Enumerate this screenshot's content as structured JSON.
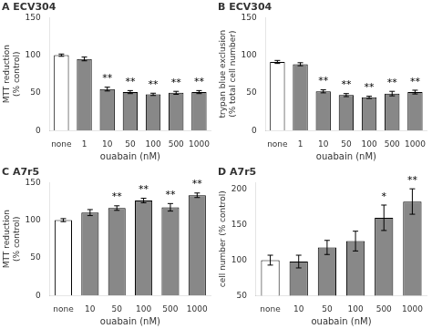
{
  "chart_data": [
    {
      "type": "bar",
      "title": "A ECV304",
      "xlabel": "ouabain (nM)",
      "ylabel": "MTT reduction\n(% control)",
      "categories": [
        "none",
        "1",
        "10",
        "50",
        "100",
        "500",
        "1000"
      ],
      "values": [
        100,
        95,
        55,
        51,
        48,
        50,
        51
      ],
      "errors": [
        1.5,
        2.5,
        2.5,
        2,
        1.5,
        2,
        2
      ],
      "colors": [
        "white",
        "#888888",
        "#888888",
        "#888888",
        "#888888",
        "#888888",
        "#888888"
      ],
      "ylim": [
        0,
        150
      ],
      "yticks": [
        0,
        50,
        100,
        150
      ],
      "grid": false,
      "annotations": [
        {
          "category": "10",
          "text": "**"
        },
        {
          "category": "50",
          "text": "**"
        },
        {
          "category": "100",
          "text": "**"
        },
        {
          "category": "500",
          "text": "**"
        },
        {
          "category": "1000",
          "text": "**"
        }
      ]
    },
    {
      "type": "bar",
      "title": "B ECV304",
      "xlabel": "ouabain (nM)",
      "ylabel": "trypan blue exclusion\n(% total cell number)",
      "categories": [
        "none",
        "1",
        "10",
        "50",
        "100",
        "500",
        "1000"
      ],
      "values": [
        91,
        88,
        52,
        47,
        44,
        49,
        51
      ],
      "errors": [
        2,
        2,
        2,
        2,
        1.5,
        3,
        2.5
      ],
      "colors": [
        "white",
        "#888888",
        "#888888",
        "#888888",
        "#888888",
        "#888888",
        "#888888"
      ],
      "ylim": [
        0,
        150
      ],
      "yticks": [
        0,
        50,
        100,
        150
      ],
      "grid": false,
      "annotations": [
        {
          "category": "10",
          "text": "**"
        },
        {
          "category": "50",
          "text": "**"
        },
        {
          "category": "100",
          "text": "**"
        },
        {
          "category": "500",
          "text": "**"
        },
        {
          "category": "1000",
          "text": "**"
        }
      ]
    },
    {
      "type": "bar",
      "title": "C A7r5",
      "xlabel": "ouabain (nM)",
      "ylabel": "MTT reduction\n(% control)",
      "categories": [
        "none",
        "10",
        "50",
        "100",
        "500",
        "1000"
      ],
      "values": [
        100,
        110,
        116,
        126,
        117,
        133
      ],
      "errors": [
        2,
        4,
        3,
        3,
        5,
        3
      ],
      "colors": [
        "white",
        "#888888",
        "#888888",
        "#888888",
        "#888888",
        "#888888"
      ],
      "ylim": [
        0,
        150
      ],
      "yticks": [
        0,
        50,
        100,
        150
      ],
      "grid": false,
      "annotations": [
        {
          "category": "50",
          "text": "**"
        },
        {
          "category": "100",
          "text": "**"
        },
        {
          "category": "500",
          "text": "**"
        },
        {
          "category": "1000",
          "text": "**"
        }
      ]
    },
    {
      "type": "bar",
      "title": "D A7r5",
      "xlabel": "ouabain (nM)",
      "ylabel": "cell number (% control)",
      "categories": [
        "none",
        "10",
        "50",
        "100",
        "500",
        "1000"
      ],
      "values": [
        100,
        98,
        118,
        127,
        160,
        183
      ],
      "errors": [
        7,
        9,
        10,
        14,
        18,
        18
      ],
      "colors": [
        "white",
        "#888888",
        "#888888",
        "#888888",
        "#888888",
        "#888888"
      ],
      "ylim": [
        50,
        210
      ],
      "yticks": [
        50,
        100,
        150,
        200
      ],
      "grid": false,
      "annotations": [
        {
          "category": "500",
          "text": "*"
        },
        {
          "category": "1000",
          "text": "**"
        }
      ]
    }
  ]
}
